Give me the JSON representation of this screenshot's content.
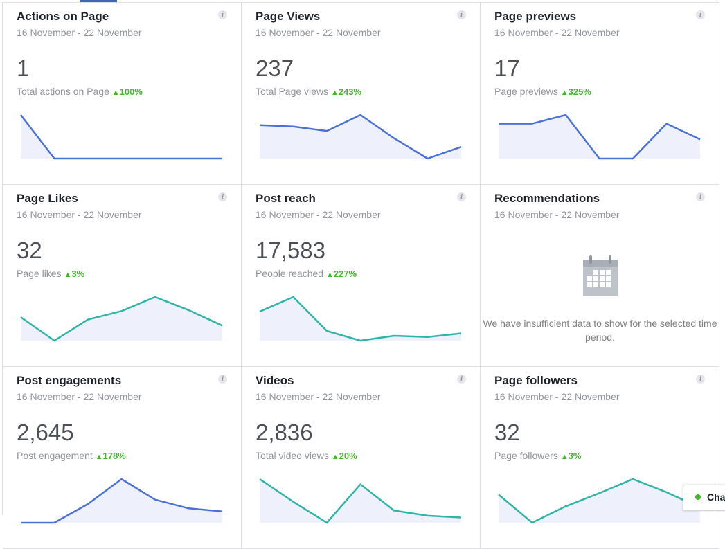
{
  "colors": {
    "blue_line": "#4a72d6",
    "teal_line": "#2fb5a7",
    "fill": "#eef0fb",
    "accent_green": "#42b72a"
  },
  "cards": [
    {
      "title": "Actions on Page",
      "range": "16 November - 22 November",
      "value": "1",
      "label": "Total actions on Page",
      "delta": "100%",
      "color": "blue",
      "series": [
        10.5,
        0,
        0,
        0,
        0,
        0,
        0
      ]
    },
    {
      "title": "Page Views",
      "range": "16 November - 22 November",
      "value": "237",
      "label": "Total Page views",
      "delta": "243%",
      "color": "blue",
      "series": [
        27,
        26,
        23,
        34,
        18,
        4,
        12
      ]
    },
    {
      "title": "Page previews",
      "range": "16 November - 22 November",
      "value": "17",
      "label": "Page previews",
      "delta": "325%",
      "color": "blue",
      "series": [
        3,
        3,
        3.5,
        1,
        1,
        3,
        2.1
      ]
    },
    {
      "title": "Page Likes",
      "range": "16 November - 22 November",
      "value": "32",
      "label": "Page likes",
      "delta": "3%",
      "color": "teal",
      "series": [
        5,
        0,
        4.5,
        6.3,
        9.3,
        6.5,
        3.2
      ]
    },
    {
      "title": "Post reach",
      "range": "16 November - 22 November",
      "value": "17,583",
      "label": "People reached",
      "delta": "227%",
      "color": "teal",
      "series": [
        4500,
        5100,
        3700,
        3300,
        3500,
        3450,
        3600
      ]
    },
    {
      "title": "Recommendations",
      "range": "16 November - 22 November",
      "nodata": "We have insufficient data to show for the selected time period.",
      "icon": "calendar-icon"
    },
    {
      "title": "Post engagements",
      "range": "16 November - 22 November",
      "value": "2,645",
      "label": "Post engagement",
      "delta": "178%",
      "color": "blue",
      "series": [
        0,
        0,
        30,
        70,
        37,
        23,
        18
      ]
    },
    {
      "title": "Videos",
      "range": "16 November - 22 November",
      "value": "2,836",
      "label": "Total video views",
      "delta": "20%",
      "color": "teal",
      "series": [
        40,
        27,
        15,
        37,
        22,
        19,
        18
      ]
    },
    {
      "title": "Page followers",
      "range": "16 November - 22 November",
      "value": "32",
      "label": "Page followers",
      "delta": "3%",
      "color": "teal",
      "series": [
        6,
        0,
        3.5,
        6.3,
        9.3,
        6.5,
        3.2
      ]
    }
  ],
  "chat": {
    "label": "Chat"
  }
}
